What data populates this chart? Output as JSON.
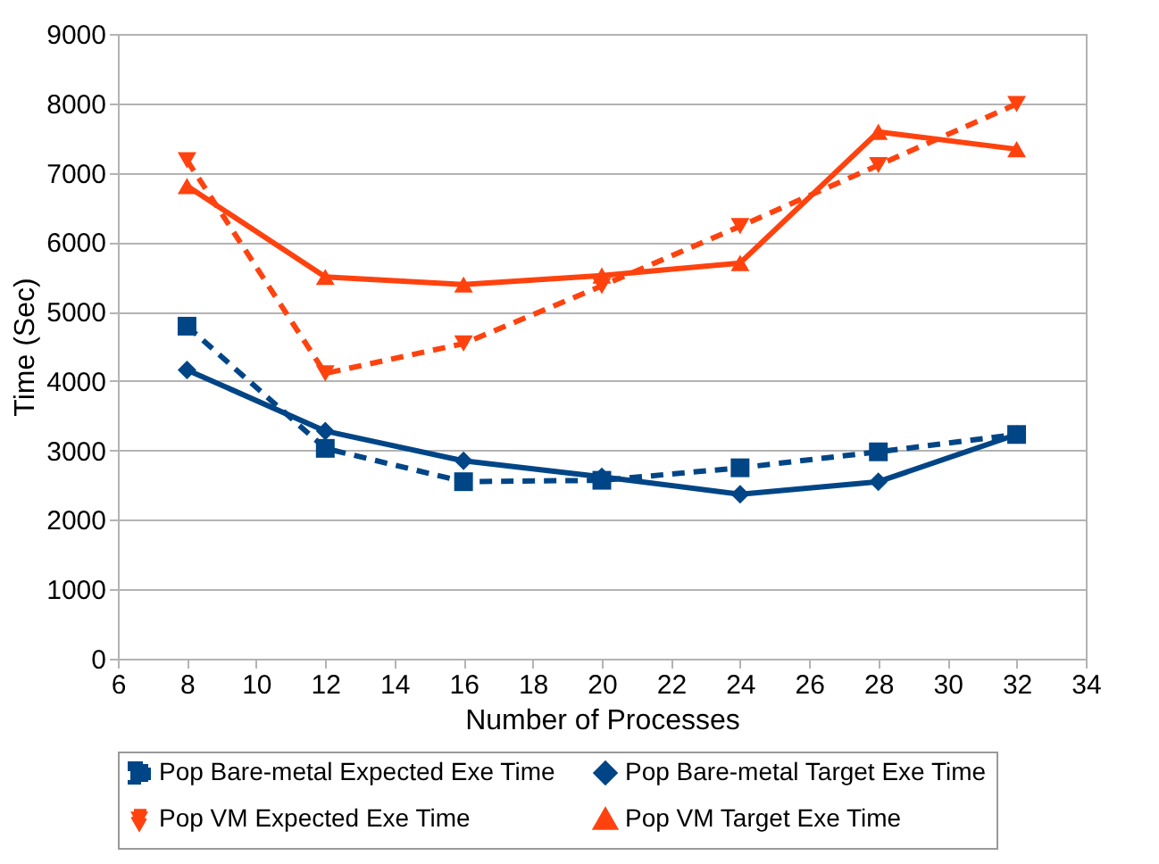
{
  "chart_data": {
    "type": "line",
    "xlabel": "Number of Processes",
    "ylabel": "Time (Sec)",
    "x": [
      8,
      12,
      16,
      20,
      24,
      28,
      32
    ],
    "xlim": [
      6,
      34
    ],
    "xticks": [
      6,
      8,
      10,
      12,
      14,
      16,
      18,
      20,
      22,
      24,
      26,
      28,
      30,
      32,
      34
    ],
    "ylim": [
      0,
      9000
    ],
    "yticks": [
      0,
      1000,
      2000,
      3000,
      4000,
      5000,
      6000,
      7000,
      8000,
      9000
    ],
    "grid": "y",
    "legend": "bottom",
    "series": [
      {
        "name": "Pop Bare-metal Expected Exe Time",
        "color": "#004586",
        "marker": "square",
        "line_style": "dashed",
        "values": [
          4790,
          3030,
          2550,
          2570,
          2750,
          2980,
          3230
        ]
      },
      {
        "name": "Pop Bare-metal Target Exe Time",
        "color": "#004586",
        "marker": "diamond",
        "line_style": "solid",
        "values": [
          4160,
          3280,
          2850,
          2620,
          2370,
          2550,
          3230
        ]
      },
      {
        "name": "Pop VM Expected Exe Time",
        "color": "#ff420e",
        "marker": "triangle",
        "line_style": "dashed",
        "values": [
          7180,
          4110,
          4540,
          5370,
          6230,
          7110,
          7990
        ]
      },
      {
        "name": "Pop VM Target Exe Time",
        "color": "#ff420e",
        "marker": "triangle-up",
        "line_style": "solid",
        "values": [
          6810,
          5500,
          5390,
          5520,
          5700,
          7590,
          7340
        ]
      }
    ]
  }
}
